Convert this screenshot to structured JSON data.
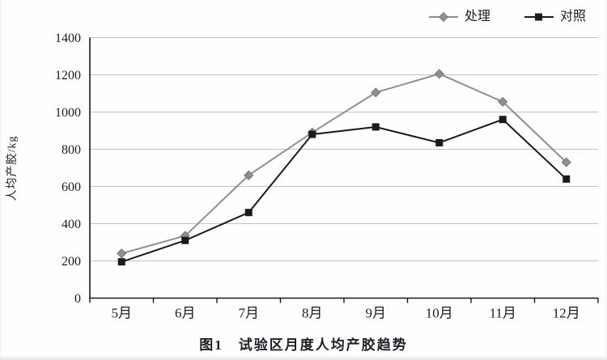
{
  "figure": {
    "caption": "图1　试验区月度人均产胶趋势"
  },
  "chart_data": {
    "type": "line",
    "title": "",
    "xlabel": "",
    "ylabel": "人均产胶/kg",
    "categories": [
      "5月",
      "6月",
      "7月",
      "8月",
      "9月",
      "10月",
      "11月",
      "12月"
    ],
    "series": [
      {
        "name": "处理",
        "marker": "diamond",
        "color": "#8f8f8f",
        "values": [
          240,
          335,
          660,
          890,
          1105,
          1205,
          1055,
          730
        ]
      },
      {
        "name": "对照",
        "marker": "square",
        "color": "#1a1a1a",
        "values": [
          195,
          310,
          460,
          880,
          920,
          835,
          960,
          640
        ]
      }
    ],
    "ylim": [
      0,
      1400
    ],
    "ytick_step": 200,
    "grid": true,
    "legend_position": "top-right"
  },
  "colors": {
    "gridline": "#c2c2c2",
    "axis": "#161616",
    "text": "#1b1b24",
    "background": "#fefefe"
  }
}
